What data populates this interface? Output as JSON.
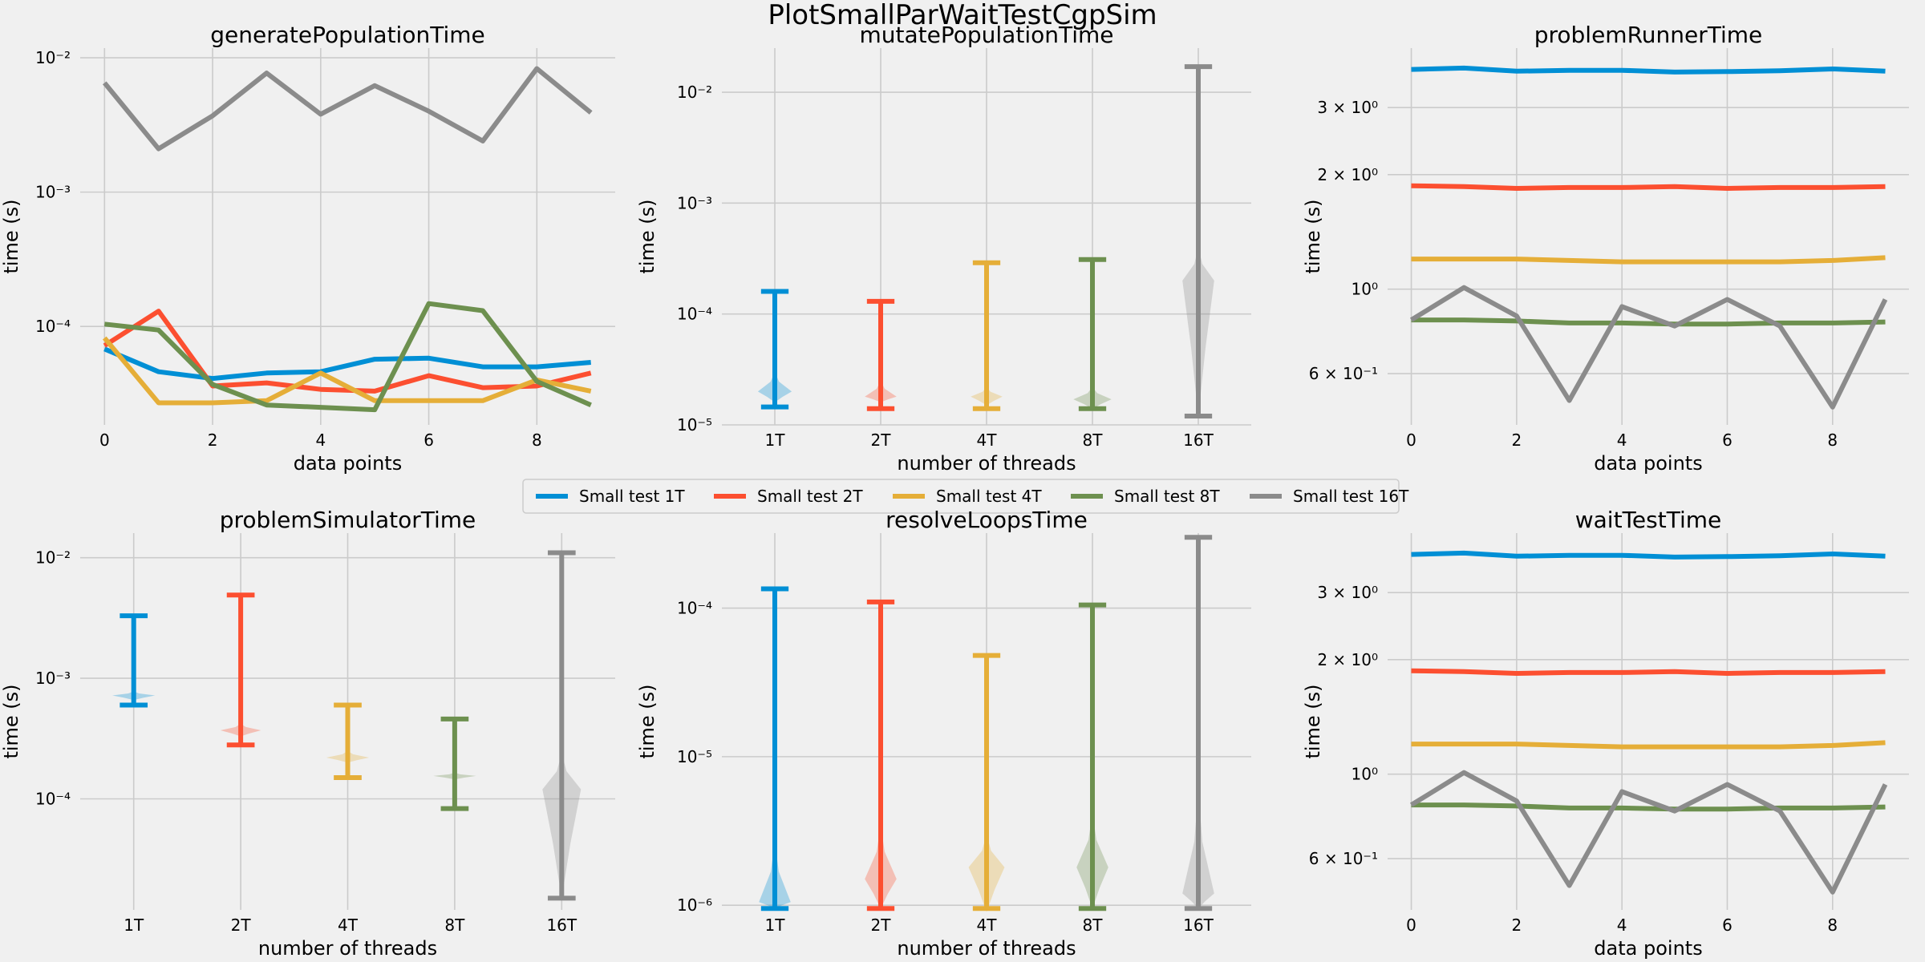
{
  "figure_title": "PlotSmallParWaitTestCgpSim",
  "colors": [
    "#008fd5",
    "#fc4f30",
    "#e5ae38",
    "#6d904f",
    "#8b8b8b"
  ],
  "legend": {
    "placement": "center, between rows",
    "labels": [
      "Small test 1T",
      "Small test 2T",
      "Small test 4T",
      "Small test 8T",
      "Small test 16T"
    ]
  },
  "chart_data": [
    {
      "type": "line",
      "title": "generatePopulationTime",
      "xlabel": "data points",
      "ylabel": "time (s)",
      "yscale": "log",
      "xlim": [
        -0.45,
        9.45
      ],
      "ylim": [
        1.85e-05,
        0.0118
      ],
      "xticks": [
        0,
        2,
        4,
        6,
        8
      ],
      "yticks": [
        {
          "v": 0.0001,
          "label": "10⁻⁴"
        },
        {
          "v": 0.001,
          "label": "10⁻³"
        },
        {
          "v": 0.01,
          "label": "10⁻²"
        }
      ],
      "grid": true,
      "x": [
        0,
        1,
        2,
        3,
        4,
        5,
        6,
        7,
        8,
        9
      ],
      "series": [
        {
          "name": "Small test 1T",
          "values": [
            6.8e-05,
            4.6e-05,
            4.1e-05,
            4.5e-05,
            4.6e-05,
            5.7e-05,
            5.8e-05,
            5e-05,
            5e-05,
            5.4e-05
          ]
        },
        {
          "name": "Small test 2T",
          "values": [
            7.2e-05,
            0.00013,
            3.6e-05,
            3.8e-05,
            3.4e-05,
            3.3e-05,
            4.3e-05,
            3.5e-05,
            3.6e-05,
            4.5e-05
          ]
        },
        {
          "name": "Small test 4T",
          "values": [
            8.2e-05,
            2.7e-05,
            2.7e-05,
            2.8e-05,
            4.5e-05,
            2.8e-05,
            2.8e-05,
            2.8e-05,
            4e-05,
            3.3e-05
          ]
        },
        {
          "name": "Small test 8T",
          "values": [
            0.000104,
            9.4e-05,
            3.7e-05,
            2.6e-05,
            2.5e-05,
            2.4e-05,
            0.000148,
            0.000131,
            3.9e-05,
            2.6e-05
          ]
        },
        {
          "name": "Small test 16T",
          "values": [
            0.0065,
            0.0021,
            0.0037,
            0.0077,
            0.0038,
            0.0062,
            0.004,
            0.0024,
            0.0083,
            0.0039
          ]
        }
      ]
    },
    {
      "type": "violin",
      "title": "mutatePopulationTime",
      "xlabel": "number of threads",
      "ylabel": "time (s)",
      "yscale": "log",
      "ylim": [
        1e-05,
        0.025
      ],
      "categories": [
        "1T",
        "2T",
        "4T",
        "8T",
        "16T"
      ],
      "yticks": [
        {
          "v": 1e-05,
          "label": "10⁻⁵"
        },
        {
          "v": 0.0001,
          "label": "10⁻⁴"
        },
        {
          "v": 0.001,
          "label": "10⁻³"
        },
        {
          "v": 0.01,
          "label": "10⁻²"
        }
      ],
      "grid": true,
      "series": [
        {
          "name": "1T",
          "min": 1.45e-05,
          "max": 0.00016,
          "mode": 2e-05,
          "lo": 1.6e-05,
          "hi": 3e-05,
          "width": 0.32
        },
        {
          "name": "2T",
          "min": 1.4e-05,
          "max": 0.00013,
          "mode": 1.8e-05,
          "lo": 1.6e-05,
          "hi": 2.5e-05,
          "width": 0.3
        },
        {
          "name": "4T",
          "min": 1.4e-05,
          "max": 0.00029,
          "mode": 1.8e-05,
          "lo": 1.5e-05,
          "hi": 2.2e-05,
          "width": 0.3
        },
        {
          "name": "8T",
          "min": 1.4e-05,
          "max": 0.00031,
          "mode": 1.7e-05,
          "lo": 1.4e-05,
          "hi": 2.2e-05,
          "width": 0.36
        },
        {
          "name": "16T",
          "min": 1.2e-05,
          "max": 0.017,
          "mode": 0.0002,
          "lo": 1.2e-05,
          "hi": 0.0004,
          "width": 0.3
        }
      ]
    },
    {
      "type": "line",
      "title": "problemRunnerTime",
      "xlabel": "data points",
      "ylabel": "time (s)",
      "yscale": "log",
      "xlim": [
        -0.45,
        9.45
      ],
      "ylim": [
        0.44,
        4.3
      ],
      "xticks": [
        0,
        2,
        4,
        6,
        8
      ],
      "yticks": [
        {
          "v": 0.6,
          "label": "6 × 10⁻¹"
        },
        {
          "v": 1,
          "label": "10⁰"
        },
        {
          "v": 2,
          "label": "2 × 10⁰"
        },
        {
          "v": 3,
          "label": "3 × 10⁰"
        }
      ],
      "grid": true,
      "x": [
        0,
        1,
        2,
        3,
        4,
        5,
        6,
        7,
        8,
        9
      ],
      "series": [
        {
          "name": "Small test 1T",
          "values": [
            3.78,
            3.81,
            3.74,
            3.76,
            3.76,
            3.72,
            3.73,
            3.75,
            3.79,
            3.74
          ]
        },
        {
          "name": "Small test 2T",
          "values": [
            1.87,
            1.86,
            1.84,
            1.85,
            1.85,
            1.86,
            1.84,
            1.85,
            1.85,
            1.86
          ]
        },
        {
          "name": "Small test 4T",
          "values": [
            1.2,
            1.2,
            1.2,
            1.19,
            1.18,
            1.18,
            1.18,
            1.18,
            1.19,
            1.21
          ]
        },
        {
          "name": "Small test 8T",
          "values": [
            0.83,
            0.83,
            0.825,
            0.815,
            0.815,
            0.81,
            0.81,
            0.815,
            0.815,
            0.82
          ]
        },
        {
          "name": "Small test 16T",
          "values": [
            0.83,
            1.01,
            0.85,
            0.51,
            0.9,
            0.8,
            0.94,
            0.8,
            0.49,
            0.94
          ]
        }
      ]
    },
    {
      "type": "violin",
      "title": "problemSimulatorTime",
      "xlabel": "number of threads",
      "ylabel": "time (s)",
      "yscale": "log",
      "ylim": [
        1.2e-05,
        0.016
      ],
      "categories": [
        "1T",
        "2T",
        "4T",
        "8T",
        "16T"
      ],
      "yticks": [
        {
          "v": 0.0001,
          "label": "10⁻⁴"
        },
        {
          "v": 0.001,
          "label": "10⁻³"
        },
        {
          "v": 0.01,
          "label": "10⁻²"
        }
      ],
      "grid": true,
      "series": [
        {
          "name": "1T",
          "min": 0.0006,
          "max": 0.0033,
          "mode": 0.00072,
          "lo": 0.00066,
          "hi": 0.00078,
          "width": 0.4
        },
        {
          "name": "2T",
          "min": 0.00028,
          "max": 0.0049,
          "mode": 0.00037,
          "lo": 0.00033,
          "hi": 0.00042,
          "width": 0.38
        },
        {
          "name": "4T",
          "min": 0.00015,
          "max": 0.0006,
          "mode": 0.00022,
          "lo": 0.0002,
          "hi": 0.00025,
          "width": 0.4
        },
        {
          "name": "8T",
          "min": 8.3e-05,
          "max": 0.00046,
          "mode": 0.000155,
          "lo": 0.000145,
          "hi": 0.000165,
          "width": 0.4
        },
        {
          "name": "16T",
          "min": 1.5e-05,
          "max": 0.011,
          "mode": 0.00012,
          "lo": 1.5e-05,
          "hi": 0.00024,
          "width": 0.36
        }
      ]
    },
    {
      "type": "violin",
      "title": "resolveLoopsTime",
      "xlabel": "number of threads",
      "ylabel": "time (s)",
      "yscale": "log",
      "ylim": [
        9.3e-07,
        0.00032
      ],
      "categories": [
        "1T",
        "2T",
        "4T",
        "8T",
        "16T"
      ],
      "yticks": [
        {
          "v": 1e-06,
          "label": "10⁻⁶"
        },
        {
          "v": 1e-05,
          "label": "10⁻⁵"
        },
        {
          "v": 0.0001,
          "label": "10⁻⁴"
        }
      ],
      "grid": true,
      "series": [
        {
          "name": "1T",
          "min": 9.5e-07,
          "max": 0.000135,
          "mode": 1.05e-06,
          "lo": 9.5e-07,
          "hi": 2.7e-06,
          "width": 0.3
        },
        {
          "name": "2T",
          "min": 9.5e-07,
          "max": 0.00011,
          "mode": 1.5e-06,
          "lo": 9.5e-07,
          "hi": 3.5e-06,
          "width": 0.3
        },
        {
          "name": "4T",
          "min": 9.5e-07,
          "max": 4.8e-05,
          "mode": 1.8e-06,
          "lo": 9e-07,
          "hi": 3e-06,
          "width": 0.34
        },
        {
          "name": "8T",
          "min": 9.5e-07,
          "max": 0.000105,
          "mode": 1.8e-06,
          "lo": 9.5e-07,
          "hi": 4.2e-06,
          "width": 0.3
        },
        {
          "name": "16T",
          "min": 9.5e-07,
          "max": 0.0003,
          "mode": 1.2e-06,
          "lo": 9.5e-07,
          "hi": 6e-06,
          "width": 0.3
        }
      ]
    },
    {
      "type": "line",
      "title": "waitTestTime",
      "xlabel": "data points",
      "ylabel": "time (s)",
      "yscale": "log",
      "xlim": [
        -0.45,
        9.45
      ],
      "ylim": [
        0.44,
        4.3
      ],
      "xticks": [
        0,
        2,
        4,
        6,
        8
      ],
      "yticks": [
        {
          "v": 0.6,
          "label": "6 × 10⁻¹"
        },
        {
          "v": 1,
          "label": "10⁰"
        },
        {
          "v": 2,
          "label": "2 × 10⁰"
        },
        {
          "v": 3,
          "label": "3 × 10⁰"
        }
      ],
      "grid": true,
      "x": [
        0,
        1,
        2,
        3,
        4,
        5,
        6,
        7,
        8,
        9
      ],
      "series": [
        {
          "name": "Small test 1T",
          "values": [
            3.78,
            3.81,
            3.74,
            3.76,
            3.76,
            3.72,
            3.73,
            3.75,
            3.79,
            3.74
          ]
        },
        {
          "name": "Small test 2T",
          "values": [
            1.87,
            1.86,
            1.84,
            1.85,
            1.85,
            1.86,
            1.84,
            1.85,
            1.85,
            1.86
          ]
        },
        {
          "name": "Small test 4T",
          "values": [
            1.2,
            1.2,
            1.2,
            1.19,
            1.18,
            1.18,
            1.18,
            1.18,
            1.19,
            1.21
          ]
        },
        {
          "name": "Small test 8T",
          "values": [
            0.83,
            0.83,
            0.825,
            0.815,
            0.815,
            0.81,
            0.81,
            0.815,
            0.815,
            0.82
          ]
        },
        {
          "name": "Small test 16T",
          "values": [
            0.83,
            1.01,
            0.85,
            0.51,
            0.9,
            0.8,
            0.94,
            0.8,
            0.49,
            0.94
          ]
        }
      ]
    }
  ]
}
